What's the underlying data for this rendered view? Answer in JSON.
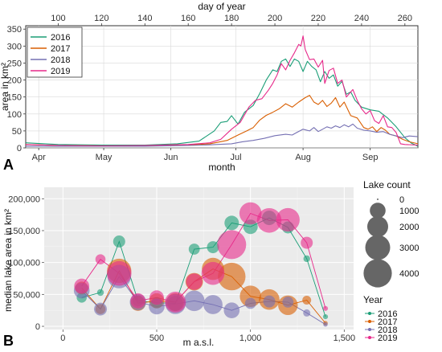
{
  "panels": [
    {
      "letter": "A"
    },
    {
      "letter": "B"
    }
  ],
  "colors": {
    "2016": "#1b9e77",
    "2017": "#d95f02",
    "2018": "#7570b3",
    "2019": "#e7298a"
  },
  "chart_data": [
    {
      "type": "line",
      "xlabel": "month",
      "x2label": "day of year",
      "ylabel": "area in km²",
      "x_range_doy": [
        85,
        266
      ],
      "ylim": [
        0,
        360
      ],
      "x_ticks_month": [
        {
          "label": "Apr",
          "doy": 91
        },
        {
          "label": "May",
          "doy": 121
        },
        {
          "label": "Jun",
          "doy": 152
        },
        {
          "label": "Jul",
          "doy": 182
        },
        {
          "label": "Aug",
          "doy": 213
        },
        {
          "label": "Sep",
          "doy": 244
        }
      ],
      "x_ticks_doy": [
        100,
        120,
        140,
        160,
        180,
        200,
        220,
        240,
        260
      ],
      "y_ticks": [
        0,
        50,
        100,
        150,
        200,
        250,
        300,
        350
      ],
      "legend_placement": "top-left",
      "grid": true,
      "series": [
        {
          "name": "2016",
          "color": "#1b9e77",
          "points": [
            [
              85,
              15
            ],
            [
              100,
              10
            ],
            [
              120,
              8
            ],
            [
              140,
              8
            ],
            [
              155,
              12
            ],
            [
              165,
              20
            ],
            [
              172,
              50
            ],
            [
              175,
              75
            ],
            [
              178,
              78
            ],
            [
              180,
              95
            ],
            [
              183,
              70
            ],
            [
              186,
              105
            ],
            [
              190,
              125
            ],
            [
              193,
              160
            ],
            [
              196,
              200
            ],
            [
              199,
              230
            ],
            [
              201,
              225
            ],
            [
              203,
              255
            ],
            [
              205,
              262
            ],
            [
              207,
              240
            ],
            [
              209,
              262
            ],
            [
              211,
              255
            ],
            [
              213,
              225
            ],
            [
              215,
              255
            ],
            [
              217,
              240
            ],
            [
              219,
              230
            ],
            [
              221,
              195
            ],
            [
              223,
              225
            ],
            [
              225,
              205
            ],
            [
              227,
              215
            ],
            [
              229,
              182
            ],
            [
              231,
              196
            ],
            [
              233,
              158
            ],
            [
              235,
              165
            ],
            [
              237,
              140
            ],
            [
              240,
              120
            ],
            [
              244,
              112
            ],
            [
              248,
              108
            ],
            [
              252,
              88
            ],
            [
              256,
              62
            ],
            [
              260,
              30
            ],
            [
              263,
              14
            ],
            [
              266,
              5
            ]
          ]
        },
        {
          "name": "2017",
          "color": "#d95f02",
          "points": [
            [
              85,
              10
            ],
            [
              100,
              7
            ],
            [
              120,
              6
            ],
            [
              140,
              6
            ],
            [
              160,
              8
            ],
            [
              170,
              12
            ],
            [
              178,
              22
            ],
            [
              183,
              38
            ],
            [
              187,
              50
            ],
            [
              190,
              60
            ],
            [
              193,
              82
            ],
            [
              196,
              96
            ],
            [
              199,
              105
            ],
            [
              202,
              115
            ],
            [
              205,
              130
            ],
            [
              208,
              120
            ],
            [
              211,
              135
            ],
            [
              214,
              148
            ],
            [
              216,
              155
            ],
            [
              218,
              135
            ],
            [
              220,
              128
            ],
            [
              222,
              140
            ],
            [
              224,
              122
            ],
            [
              226,
              132
            ],
            [
              228,
              148
            ],
            [
              230,
              120
            ],
            [
              232,
              135
            ],
            [
              235,
              95
            ],
            [
              238,
              88
            ],
            [
              241,
              60
            ],
            [
              243,
              55
            ],
            [
              245,
              62
            ],
            [
              247,
              48
            ],
            [
              249,
              60
            ],
            [
              251,
              52
            ],
            [
              253,
              40
            ],
            [
              256,
              35
            ],
            [
              259,
              25
            ],
            [
              262,
              18
            ],
            [
              266,
              12
            ]
          ]
        },
        {
          "name": "2018",
          "color": "#7570b3",
          "points": [
            [
              85,
              5
            ],
            [
              100,
              5
            ],
            [
              120,
              5
            ],
            [
              140,
              5
            ],
            [
              160,
              7
            ],
            [
              170,
              9
            ],
            [
              180,
              12
            ],
            [
              185,
              18
            ],
            [
              190,
              22
            ],
            [
              195,
              28
            ],
            [
              200,
              36
            ],
            [
              205,
              40
            ],
            [
              208,
              38
            ],
            [
              210,
              45
            ],
            [
              213,
              55
            ],
            [
              216,
              50
            ],
            [
              218,
              60
            ],
            [
              220,
              48
            ],
            [
              222,
              55
            ],
            [
              224,
              62
            ],
            [
              226,
              58
            ],
            [
              228,
              65
            ],
            [
              230,
              60
            ],
            [
              232,
              68
            ],
            [
              234,
              62
            ],
            [
              236,
              70
            ],
            [
              238,
              58
            ],
            [
              241,
              52
            ],
            [
              244,
              50
            ],
            [
              247,
              46
            ],
            [
              250,
              48
            ],
            [
              253,
              40
            ],
            [
              256,
              35
            ],
            [
              259,
              30
            ],
            [
              262,
              35
            ],
            [
              266,
              33
            ]
          ]
        },
        {
          "name": "2019",
          "color": "#e7298a",
          "points": [
            [
              85,
              10
            ],
            [
              100,
              7
            ],
            [
              120,
              6
            ],
            [
              140,
              7
            ],
            [
              160,
              10
            ],
            [
              170,
              15
            ],
            [
              175,
              25
            ],
            [
              180,
              55
            ],
            [
              184,
              75
            ],
            [
              188,
              120
            ],
            [
              191,
              140
            ],
            [
              194,
              145
            ],
            [
              197,
              170
            ],
            [
              199,
              190
            ],
            [
              201,
              215
            ],
            [
              203,
              248
            ],
            [
              205,
              230
            ],
            [
              207,
              258
            ],
            [
              209,
              280
            ],
            [
              211,
              305
            ],
            [
              212,
              300
            ],
            [
              213,
              330
            ],
            [
              214,
              290
            ],
            [
              216,
              260
            ],
            [
              218,
              262
            ],
            [
              220,
              238
            ],
            [
              222,
              258
            ],
            [
              223,
              190
            ],
            [
              225,
              228
            ],
            [
              227,
              235
            ],
            [
              229,
              190
            ],
            [
              231,
              200
            ],
            [
              233,
              150
            ],
            [
              236,
              172
            ],
            [
              238,
              140
            ],
            [
              240,
              115
            ],
            [
              242,
              100
            ],
            [
              244,
              110
            ],
            [
              246,
              80
            ],
            [
              248,
              72
            ],
            [
              250,
              95
            ],
            [
              252,
              62
            ],
            [
              254,
              60
            ],
            [
              256,
              45
            ],
            [
              258,
              12
            ],
            [
              260,
              10
            ],
            [
              266,
              8
            ]
          ]
        }
      ]
    },
    {
      "type": "scatter",
      "xlabel": "m a.s.l.",
      "ylabel": "median lake area in km²",
      "xlim": [
        -100,
        1550
      ],
      "ylim": [
        -5000,
        218000
      ],
      "x_ticks": [
        {
          "v": 0,
          "label": "0"
        },
        {
          "v": 500,
          "label": "500"
        },
        {
          "v": 1000,
          "label": "1,000"
        },
        {
          "v": 1500,
          "label": "1,500"
        }
      ],
      "y_ticks": [
        {
          "v": 0,
          "label": "0"
        },
        {
          "v": 50000,
          "label": "50,000"
        },
        {
          "v": 100000,
          "label": "100,000"
        },
        {
          "v": 150000,
          "label": "150,000"
        },
        {
          "v": 200000,
          "label": "200,000"
        }
      ],
      "grid": true,
      "size_legend": {
        "title": "Lake count",
        "counts": [
          0,
          1000,
          2000,
          3000,
          4000
        ]
      },
      "color_legend": {
        "title": "Year",
        "entries": [
          "2016",
          "2017",
          "2018",
          "2019"
        ]
      },
      "series": [
        {
          "name": "2016",
          "color": "#1b9e77",
          "points": [
            {
              "x": 100,
              "y": 45000,
              "n": 300
            },
            {
              "x": 200,
              "y": 53000,
              "n": 80
            },
            {
              "x": 300,
              "y": 133000,
              "n": 500
            },
            {
              "x": 400,
              "y": 40000,
              "n": 400
            },
            {
              "x": 500,
              "y": 37000,
              "n": 400
            },
            {
              "x": 600,
              "y": 36000,
              "n": 900
            },
            {
              "x": 700,
              "y": 121000,
              "n": 400
            },
            {
              "x": 800,
              "y": 124000,
              "n": 500
            },
            {
              "x": 900,
              "y": 162000,
              "n": 800
            },
            {
              "x": 1000,
              "y": 156000,
              "n": 800
            },
            {
              "x": 1100,
              "y": 170000,
              "n": 800
            },
            {
              "x": 1200,
              "y": 155000,
              "n": 500
            },
            {
              "x": 1300,
              "y": 106000,
              "n": 80
            },
            {
              "x": 1400,
              "y": 15000,
              "n": 20
            }
          ]
        },
        {
          "name": "2017",
          "color": "#d95f02",
          "points": [
            {
              "x": 100,
              "y": 60000,
              "n": 600
            },
            {
              "x": 200,
              "y": 27000,
              "n": 300
            },
            {
              "x": 300,
              "y": 87000,
              "n": 2800
            },
            {
              "x": 400,
              "y": 36000,
              "n": 900
            },
            {
              "x": 500,
              "y": 40000,
              "n": 900
            },
            {
              "x": 600,
              "y": 38000,
              "n": 1400
            },
            {
              "x": 700,
              "y": 70000,
              "n": 1300
            },
            {
              "x": 800,
              "y": 90000,
              "n": 2300
            },
            {
              "x": 900,
              "y": 78000,
              "n": 3800
            },
            {
              "x": 1000,
              "y": 47000,
              "n": 2100
            },
            {
              "x": 1100,
              "y": 42000,
              "n": 1900
            },
            {
              "x": 1200,
              "y": 33000,
              "n": 1700
            },
            {
              "x": 1300,
              "y": 41000,
              "n": 200
            },
            {
              "x": 1400,
              "y": 5000,
              "n": 10
            }
          ]
        },
        {
          "name": "2018",
          "color": "#7570b3",
          "points": [
            {
              "x": 100,
              "y": 56000,
              "n": 1000
            },
            {
              "x": 200,
              "y": 27000,
              "n": 600
            },
            {
              "x": 300,
              "y": 78000,
              "n": 2600
            },
            {
              "x": 400,
              "y": 38000,
              "n": 1100
            },
            {
              "x": 500,
              "y": 31000,
              "n": 1000
            },
            {
              "x": 600,
              "y": 35000,
              "n": 1800
            },
            {
              "x": 700,
              "y": 40000,
              "n": 1900
            },
            {
              "x": 800,
              "y": 34000,
              "n": 1600
            },
            {
              "x": 900,
              "y": 25000,
              "n": 1000
            },
            {
              "x": 1000,
              "y": 36000,
              "n": 400
            },
            {
              "x": 1100,
              "y": 39000,
              "n": 500
            },
            {
              "x": 1200,
              "y": 38000,
              "n": 400
            },
            {
              "x": 1300,
              "y": 21000,
              "n": 100
            },
            {
              "x": 1400,
              "y": 3000,
              "n": 10
            }
          ]
        },
        {
          "name": "2019",
          "color": "#e7298a",
          "points": [
            {
              "x": 100,
              "y": 63000,
              "n": 900
            },
            {
              "x": 200,
              "y": 105000,
              "n": 300
            },
            {
              "x": 300,
              "y": 83000,
              "n": 2900
            },
            {
              "x": 400,
              "y": 40000,
              "n": 900
            },
            {
              "x": 500,
              "y": 45000,
              "n": 800
            },
            {
              "x": 600,
              "y": 38000,
              "n": 2000
            },
            {
              "x": 700,
              "y": 70000,
              "n": 1100
            },
            {
              "x": 800,
              "y": 83000,
              "n": 2500
            },
            {
              "x": 900,
              "y": 128000,
              "n": 4200
            },
            {
              "x": 1000,
              "y": 177000,
              "n": 2300
            },
            {
              "x": 1100,
              "y": 166000,
              "n": 2900
            },
            {
              "x": 1200,
              "y": 167000,
              "n": 2600
            },
            {
              "x": 1300,
              "y": 131000,
              "n": 500
            },
            {
              "x": 1400,
              "y": 28000,
              "n": 20
            }
          ]
        }
      ]
    }
  ]
}
